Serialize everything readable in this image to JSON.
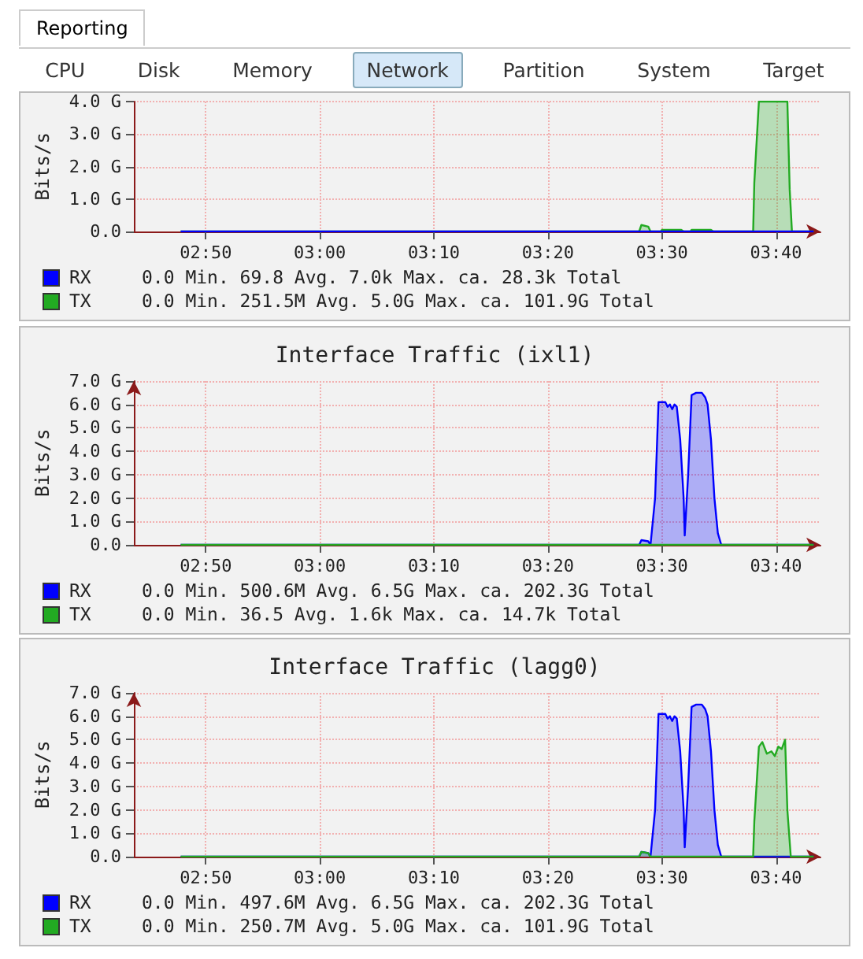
{
  "chart_data": [
    {
      "type": "other",
      "annotations": [
        "Reporting",
        "CPU",
        "Disk",
        "Memory",
        "Network",
        "Partition",
        "System",
        "Target"
      ]
    },
    {
      "type": "area",
      "ylabel": "Bits/s",
      "xlim": [
        2.7283,
        3.7317
      ],
      "ylim": [
        0,
        4
      ],
      "xticks": [
        {
          "value": 2.8333,
          "label": "02:50"
        },
        {
          "value": 3,
          "label": "03:00"
        },
        {
          "value": 3.1667,
          "label": "03:10"
        },
        {
          "value": 3.3333,
          "label": "03:20"
        },
        {
          "value": 3.5,
          "label": "03:30"
        },
        {
          "value": 3.6667,
          "label": "03:40"
        }
      ],
      "yticks": [
        {
          "value": 0,
          "label": "0.0"
        },
        {
          "value": 1,
          "label": "1.0 G"
        },
        {
          "value": 2,
          "label": "2.0 G"
        },
        {
          "value": 3,
          "label": "3.0 G"
        },
        {
          "value": 4,
          "label": "4.0 G"
        }
      ],
      "grid": true,
      "legend": "bottom",
      "series": [
        {
          "name": "RX",
          "type": "line",
          "color": "#0000ff",
          "x": [
            2.7967,
            3.7217
          ],
          "values": [
            0,
            0
          ]
        },
        {
          "name": "TX",
          "color": "#22aa22",
          "x": [
            2.7967,
            3.4667,
            3.47,
            3.48,
            3.4833,
            3.4983,
            3.5,
            3.5283,
            3.5317,
            3.5417,
            3.5433,
            3.5717,
            3.575,
            3.6333,
            3.635,
            3.6417,
            3.6833,
            3.6867,
            3.69,
            3.7217
          ],
          "values": [
            0,
            0,
            0.2,
            0.15,
            0,
            0,
            0.05,
            0.05,
            0,
            0,
            0.05,
            0.05,
            0,
            0,
            1.5,
            4.0,
            4.0,
            1.3,
            0,
            0
          ]
        }
      ],
      "annotations": [
        "0.0 Min. 69.8 Avg. 7.0k Max. ca. 28.3k Total",
        "0.0 Min. 251.5M Avg. 5.0G Max. ca. 101.9G Total"
      ]
    },
    {
      "type": "area",
      "title": "Interface Traffic (ixl1)",
      "ylabel": "Bits/s",
      "xlim": [
        2.7283,
        3.7317
      ],
      "ylim": [
        0,
        7
      ],
      "xticks": [
        {
          "value": 2.8333,
          "label": "02:50"
        },
        {
          "value": 3,
          "label": "03:00"
        },
        {
          "value": 3.1667,
          "label": "03:10"
        },
        {
          "value": 3.3333,
          "label": "03:20"
        },
        {
          "value": 3.5,
          "label": "03:30"
        },
        {
          "value": 3.6667,
          "label": "03:40"
        }
      ],
      "yticks": [
        {
          "value": 0,
          "label": "0.0"
        },
        {
          "value": 1,
          "label": "1.0 G"
        },
        {
          "value": 2,
          "label": "2.0 G"
        },
        {
          "value": 3,
          "label": "3.0 G"
        },
        {
          "value": 4,
          "label": "4.0 G"
        },
        {
          "value": 5,
          "label": "5.0 G"
        },
        {
          "value": 6,
          "label": "6.0 G"
        },
        {
          "value": 7,
          "label": "7.0 G"
        }
      ],
      "grid": true,
      "legend": "bottom",
      "series": [
        {
          "name": "RX",
          "color": "#0000ff",
          "x": [
            2.7967,
            3.4667,
            3.47,
            3.48,
            3.4833,
            3.49,
            3.495,
            3.5,
            3.505,
            3.5083,
            3.5117,
            3.515,
            3.5183,
            3.5217,
            3.5267,
            3.5317,
            3.5333,
            3.5383,
            3.5433,
            3.55,
            3.5583,
            3.5633,
            3.5667,
            3.5717,
            3.5767,
            3.5817,
            3.5867,
            3.7217
          ],
          "values": [
            0,
            0,
            0.2,
            0.15,
            0,
            2.0,
            6.1,
            6.1,
            6.1,
            5.9,
            6.0,
            5.8,
            6.0,
            5.9,
            4.5,
            2.0,
            0.4,
            3.0,
            6.4,
            6.5,
            6.5,
            6.3,
            6.0,
            4.5,
            2.0,
            0.5,
            0,
            0
          ]
        },
        {
          "name": "TX",
          "type": "line",
          "color": "#22aa22",
          "x": [
            2.7967,
            3.7217
          ],
          "values": [
            0,
            0
          ]
        }
      ],
      "annotations": [
        "0.0 Min. 500.6M Avg. 6.5G Max. ca. 202.3G Total",
        "0.0 Min. 36.5 Avg. 1.6k Max. ca. 14.7k Total"
      ]
    },
    {
      "type": "area",
      "title": "Interface Traffic (lagg0)",
      "ylabel": "Bits/s",
      "xlim": [
        2.7283,
        3.7317
      ],
      "ylim": [
        0,
        7
      ],
      "xticks": [
        {
          "value": 2.8333,
          "label": "02:50"
        },
        {
          "value": 3,
          "label": "03:00"
        },
        {
          "value": 3.1667,
          "label": "03:10"
        },
        {
          "value": 3.3333,
          "label": "03:20"
        },
        {
          "value": 3.5,
          "label": "03:30"
        },
        {
          "value": 3.6667,
          "label": "03:40"
        }
      ],
      "yticks": [
        {
          "value": 0,
          "label": "0.0"
        },
        {
          "value": 1,
          "label": "1.0 G"
        },
        {
          "value": 2,
          "label": "2.0 G"
        },
        {
          "value": 3,
          "label": "3.0 G"
        },
        {
          "value": 4,
          "label": "4.0 G"
        },
        {
          "value": 5,
          "label": "5.0 G"
        },
        {
          "value": 6,
          "label": "6.0 G"
        },
        {
          "value": 7,
          "label": "7.0 G"
        }
      ],
      "grid": true,
      "legend": "bottom",
      "series": [
        {
          "name": "RX",
          "color": "#0000ff",
          "x": [
            2.7967,
            3.4667,
            3.47,
            3.48,
            3.4833,
            3.49,
            3.495,
            3.5,
            3.505,
            3.5083,
            3.5117,
            3.515,
            3.5183,
            3.5217,
            3.5267,
            3.5317,
            3.5333,
            3.5383,
            3.5433,
            3.55,
            3.5583,
            3.5633,
            3.5667,
            3.5717,
            3.5767,
            3.5817,
            3.5867,
            3.7217
          ],
          "values": [
            0,
            0,
            0.2,
            0.15,
            0,
            2.0,
            6.1,
            6.1,
            6.1,
            5.9,
            6.0,
            5.8,
            6.0,
            5.9,
            4.5,
            2.0,
            0.4,
            3.0,
            6.4,
            6.5,
            6.5,
            6.3,
            6.0,
            4.5,
            2.0,
            0.5,
            0,
            0
          ]
        },
        {
          "name": "TX",
          "color": "#22aa22",
          "x": [
            2.7967,
            3.4667,
            3.47,
            3.48,
            3.4833,
            3.6333,
            3.635,
            3.6417,
            3.6467,
            3.6533,
            3.66,
            3.665,
            3.67,
            3.675,
            3.68,
            3.6833,
            3.6883,
            3.6917,
            3.7217
          ],
          "values": [
            0,
            0,
            0.2,
            0.15,
            0,
            0,
            1.5,
            4.7,
            4.9,
            4.4,
            4.5,
            4.3,
            4.7,
            4.6,
            5.0,
            2.0,
            0,
            0,
            0
          ]
        }
      ],
      "annotations": [
        "0.0 Min. 497.6M Avg. 6.5G Max. ca. 202.3G Total",
        "0.0 Min. 250.7M Avg. 5.0G Max. ca. 101.9G Total"
      ]
    }
  ]
}
